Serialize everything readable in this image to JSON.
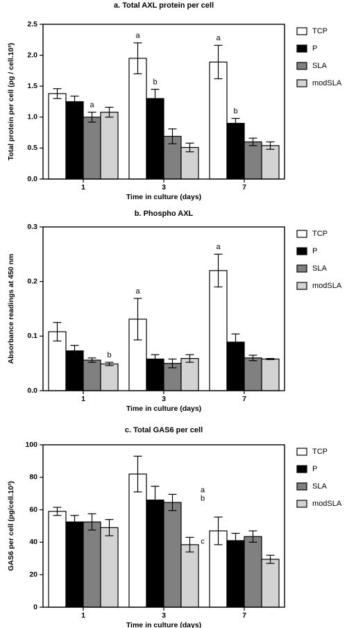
{
  "chart_data": [
    {
      "type": "bar",
      "title": "a. Total AXL protein per cell",
      "y_label": "Total protein per cell (pg / cell.10³)",
      "x_label": "Time in culture (days)",
      "categories": [
        "1",
        "3",
        "7"
      ],
      "ylim": [
        0,
        2.5
      ],
      "yticks": [
        {
          "value": 0,
          "label": "0.0"
        },
        0.5,
        {
          "value": 1,
          "label": "1.0"
        },
        1.5,
        {
          "value": 2,
          "label": "2.0"
        },
        2.5
      ],
      "letter_position": "above",
      "legend": "right",
      "series": [
        {
          "name": "TCP",
          "color": "#ffffff",
          "values": [
            1.38,
            1.95,
            1.89
          ],
          "errors": [
            0.08,
            0.25,
            0.27
          ],
          "letters": [
            null,
            "a",
            "a"
          ]
        },
        {
          "name": "P",
          "color": "#000000",
          "values": [
            1.25,
            1.3,
            0.9
          ],
          "errors": [
            0.09,
            0.15,
            0.08
          ],
          "letters": [
            null,
            "b",
            "b"
          ]
        },
        {
          "name": "SLA",
          "color": "#808080",
          "values": [
            1.0,
            0.69,
            0.6
          ],
          "errors": [
            0.08,
            0.12,
            0.06
          ],
          "letters": [
            "a",
            null,
            null
          ]
        },
        {
          "name": "modSLA",
          "color": "#d3d3d3",
          "values": [
            1.08,
            0.51,
            0.54
          ],
          "errors": [
            0.08,
            0.07,
            0.06
          ],
          "letters": [
            null,
            null,
            null
          ]
        }
      ]
    },
    {
      "type": "bar",
      "title": "b. Phospho AXL",
      "y_label": "Absorbance readings at 450 nm",
      "x_label": "Time in culture (days)",
      "categories": [
        "1",
        "3",
        "7"
      ],
      "ylim": [
        0,
        0.3
      ],
      "yticks": [
        {
          "value": 0,
          "label": "0.0"
        },
        0.1,
        0.2,
        0.3
      ],
      "letter_position": "above",
      "legend": "right",
      "series": [
        {
          "name": "TCP",
          "color": "#ffffff",
          "values": [
            0.108,
            0.131,
            0.22
          ],
          "errors": [
            0.017,
            0.038,
            0.03
          ],
          "letters": [
            null,
            "a",
            "a"
          ]
        },
        {
          "name": "P",
          "color": "#000000",
          "values": [
            0.073,
            0.058,
            0.089
          ],
          "errors": [
            0.01,
            0.008,
            0.015
          ],
          "letters": [
            null,
            null,
            null
          ]
        },
        {
          "name": "SLA",
          "color": "#808080",
          "values": [
            0.056,
            0.05,
            0.06
          ],
          "errors": [
            0.004,
            0.008,
            0.005
          ],
          "letters": [
            null,
            null,
            null
          ]
        },
        {
          "name": "modSLA",
          "color": "#d3d3d3",
          "values": [
            0.049,
            0.059,
            0.058
          ],
          "errors": [
            0.003,
            0.007,
            0.001
          ],
          "letters": [
            "b",
            null,
            null
          ]
        }
      ]
    },
    {
      "type": "bar",
      "title": "c. Total GAS6 per cell",
      "y_label": "GAS6 per cell (pg/cell.10³)",
      "x_label": "Time in culture (days)",
      "categories": [
        "1",
        "3",
        "7"
      ],
      "ylim": [
        0,
        100
      ],
      "yticks": [
        0,
        20,
        40,
        60,
        80,
        100
      ],
      "letter_position": "beside",
      "legend": "right",
      "series": [
        {
          "name": "TCP",
          "color": "#ffffff",
          "values": [
            59,
            82,
            47
          ],
          "errors": [
            2.5,
            11,
            8.5
          ],
          "letters": [
            null,
            null,
            null
          ]
        },
        {
          "name": "P",
          "color": "#000000",
          "values": [
            52.5,
            66,
            41
          ],
          "errors": [
            4,
            8.5,
            4.5
          ],
          "letters": [
            null,
            "a",
            null
          ]
        },
        {
          "name": "SLA",
          "color": "#808080",
          "values": [
            52.5,
            64.5,
            43.5
          ],
          "errors": [
            5,
            5,
            3.5
          ],
          "letters": [
            null,
            "b",
            null
          ]
        },
        {
          "name": "modSLA",
          "color": "#d3d3d3",
          "values": [
            49,
            38.5,
            29.5
          ],
          "errors": [
            5,
            4.5,
            2.5
          ],
          "letters": [
            null,
            "c",
            null
          ]
        }
      ]
    }
  ]
}
